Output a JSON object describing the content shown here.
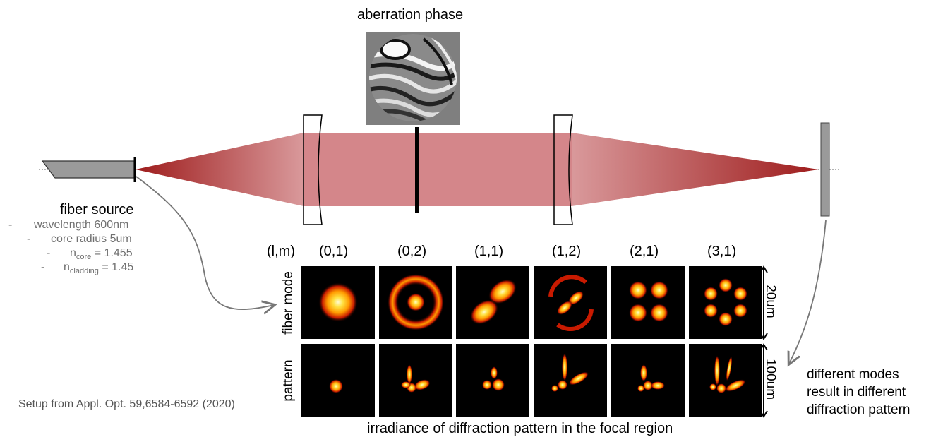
{
  "labels": {
    "aberration_title": "aberration phase",
    "fiber_title": "fiber source",
    "spec_wavelength": "wavelength 600nm",
    "spec_core_radius": "core radius 5um",
    "spec_ncore_prefix": "n",
    "spec_ncore_sub": "core",
    "spec_ncore_value": " = 1.455",
    "spec_nclad_prefix": "n",
    "spec_nclad_sub": "cladding",
    "spec_nclad_value": " = 1.45",
    "bullet": "-",
    "header_lm": "(l,m)",
    "row_fiber_mode": "fiber mode",
    "row_pattern": "pattern",
    "scale_20": "20um",
    "scale_100": "100um",
    "bottom_caption": "irradiance of diffraction pattern in the focal region",
    "right_note": [
      "different modes",
      "result in different",
      "diffraction pattern"
    ],
    "citation": "Setup from Appl. Opt. 59,6584-6592 (2020)"
  },
  "modes": [
    "(0,1)",
    "(0,2)",
    "(1,1)",
    "(1,2)",
    "(2,1)",
    "(3,1)"
  ],
  "colors": {
    "beam": "#d4868a",
    "beam_dark": "#9e1c1c",
    "tile_bg": "#000000"
  }
}
